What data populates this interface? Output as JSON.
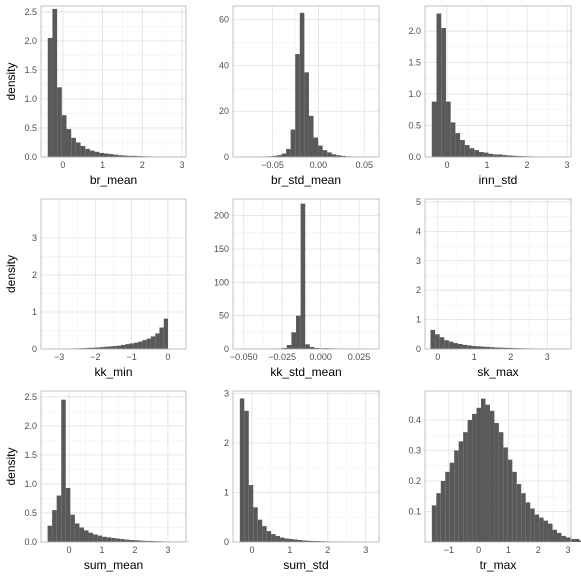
{
  "colors": {
    "bar": "#595959",
    "grid_major": "#e0e0e0",
    "grid_minor": "#f2f2f2",
    "panel_border": "#b3b3b3"
  },
  "chart_data": [
    {
      "type": "bar",
      "xlabel": "br_mean",
      "ylabel": "density",
      "xlim": [
        -0.55,
        3.1
      ],
      "ylim": [
        0,
        2.6
      ],
      "xticks": [
        0,
        1,
        2,
        3
      ],
      "xtick_labels": [
        "0",
        "1",
        "2",
        "3"
      ],
      "yticks": [
        0,
        0.5,
        1,
        1.5,
        2,
        2.5
      ],
      "ytick_labels": [
        "0.0",
        "0.5",
        "1.0",
        "1.5",
        "2.0",
        "2.5"
      ],
      "bin_start": -0.38,
      "bin_width": 0.118,
      "values": [
        2.05,
        2.55,
        1.2,
        0.72,
        0.48,
        0.33,
        0.25,
        0.19,
        0.14,
        0.11,
        0.09,
        0.07,
        0.06,
        0.05,
        0.04,
        0.03,
        0.025,
        0.02,
        0.02,
        0.015,
        0.012,
        0.01,
        0.008,
        0.006,
        0.005,
        0.004,
        0.003,
        0.002
      ]
    },
    {
      "type": "bar",
      "xlabel": "br_std_mean",
      "ylabel": "",
      "xlim": [
        -0.093,
        0.066
      ],
      "ylim": [
        0,
        66
      ],
      "xticks": [
        -0.05,
        0,
        0.05
      ],
      "xtick_labels": [
        "−0.05",
        "0.00",
        "0.05"
      ],
      "yticks": [
        0,
        20,
        40,
        60
      ],
      "ytick_labels": [
        "0",
        "20",
        "40",
        "60"
      ],
      "bin_start": -0.085,
      "bin_width": 0.00498,
      "values": [
        0.05,
        0.05,
        0.1,
        0.1,
        0.15,
        0.2,
        0.3,
        0.5,
        0.8,
        1.5,
        3.5,
        12,
        45,
        63,
        37,
        18,
        8.5,
        5,
        3,
        2,
        1.2,
        0.8,
        0.5,
        0.3,
        0.2,
        0.15,
        0.1,
        0.06,
        0.04,
        0.02
      ]
    },
    {
      "type": "bar",
      "xlabel": "inn_std",
      "ylabel": "",
      "xlim": [
        -0.55,
        3.1
      ],
      "ylim": [
        0,
        2.4
      ],
      "xticks": [
        0,
        1,
        2,
        3
      ],
      "xtick_labels": [
        "0",
        "1",
        "2",
        "3"
      ],
      "yticks": [
        0,
        0.5,
        1,
        1.5,
        2
      ],
      "ytick_labels": [
        "0.0",
        "0.5",
        "1.0",
        "1.5",
        "2.0"
      ],
      "bin_start": -0.38,
      "bin_width": 0.118,
      "values": [
        0.88,
        2.28,
        2.05,
        0.88,
        0.55,
        0.38,
        0.27,
        0.19,
        0.14,
        0.11,
        0.08,
        0.07,
        0.05,
        0.04,
        0.04,
        0.03,
        0.025,
        0.02,
        0.015,
        0.012,
        0.01,
        0.008,
        0.006,
        0.005,
        0.004,
        0.003,
        0.002,
        0.002
      ]
    },
    {
      "type": "bar",
      "xlabel": "kk_min",
      "ylabel": "density",
      "xlim": [
        -3.5,
        0.5
      ],
      "ylim": [
        0,
        4.05
      ],
      "xticks": [
        -3,
        -2,
        -1,
        0
      ],
      "xtick_labels": [
        "−3",
        "−2",
        "−1",
        "0"
      ],
      "yticks": [
        0,
        1,
        2,
        3
      ],
      "ytick_labels": [
        "0",
        "1",
        "2",
        "3"
      ],
      "bin_start": -3.3,
      "bin_width": 0.118,
      "values": [
        0.003,
        0.005,
        0.006,
        0.008,
        0.01,
        0.012,
        0.015,
        0.02,
        0.025,
        0.03,
        0.035,
        0.04,
        0.05,
        0.06,
        0.07,
        0.08,
        0.09,
        0.11,
        0.13,
        0.15,
        0.17,
        0.2,
        0.24,
        0.28,
        0.34,
        0.42,
        0.58,
        0.82
      ]
    },
    {
      "type": "bar",
      "xlabel": "kk_std_mean",
      "ylabel": "",
      "xlim": [
        -0.057,
        0.038
      ],
      "ylim": [
        0,
        225
      ],
      "xticks": [
        -0.05,
        -0.025,
        0,
        0.025
      ],
      "xtick_labels": [
        "−0.050",
        "−0.025",
        "0.000",
        "0.025"
      ],
      "yticks": [
        0,
        50,
        100,
        150,
        200
      ],
      "ytick_labels": [
        "0",
        "50",
        "100",
        "150",
        "200"
      ],
      "bin_start": -0.052,
      "bin_width": 0.003,
      "values": [
        0.05,
        0.05,
        0.1,
        0.1,
        0.15,
        0.2,
        0.3,
        0.5,
        0.8,
        1.5,
        6,
        25,
        50,
        218,
        7,
        3,
        1.5,
        1,
        1.2,
        1,
        0.8,
        0.6,
        0.5,
        0.4,
        0.3,
        0.2,
        0.1,
        0.05,
        0.03,
        0.02
      ]
    },
    {
      "type": "bar",
      "xlabel": "sk_max",
      "ylabel": "",
      "xlim": [
        -0.35,
        3.65
      ],
      "ylim": [
        0,
        5.1
      ],
      "xticks": [
        0,
        1,
        2,
        3
      ],
      "xtick_labels": [
        "0",
        "1",
        "2",
        "3"
      ],
      "yticks": [
        0,
        1,
        2,
        3,
        4,
        5
      ],
      "ytick_labels": [
        "0",
        "1",
        "2",
        "3",
        "4",
        "5"
      ],
      "bin_start": -0.2,
      "bin_width": 0.126,
      "values": [
        0.65,
        0.5,
        0.4,
        0.3,
        0.25,
        0.2,
        0.17,
        0.14,
        0.12,
        0.1,
        0.09,
        0.08,
        0.07,
        0.06,
        0.05,
        0.045,
        0.04,
        0.035,
        0.03,
        0.025,
        0.02,
        0.018,
        0.015,
        0.012,
        0.01,
        0.008,
        0.006,
        0.005,
        0.004,
        0.003
      ]
    },
    {
      "type": "bar",
      "xlabel": "sum_mean",
      "ylabel": "density",
      "xlim": [
        -0.85,
        3.55
      ],
      "ylim": [
        0,
        2.6
      ],
      "xticks": [
        0,
        1,
        2,
        3
      ],
      "xtick_labels": [
        "0",
        "1",
        "2",
        "3"
      ],
      "yticks": [
        0,
        0.5,
        1,
        1.5,
        2,
        2.5
      ],
      "ytick_labels": [
        "0.0",
        "0.5",
        "1.0",
        "1.5",
        "2.0",
        "2.5"
      ],
      "bin_start": -0.65,
      "bin_width": 0.138,
      "values": [
        0.28,
        0.55,
        0.8,
        2.45,
        0.93,
        0.47,
        0.32,
        0.25,
        0.2,
        0.16,
        0.13,
        0.11,
        0.09,
        0.08,
        0.07,
        0.06,
        0.05,
        0.04,
        0.035,
        0.03,
        0.025,
        0.02,
        0.018,
        0.015,
        0.012,
        0.01,
        0.008,
        0.006,
        0.005,
        0.004,
        0.003
      ]
    },
    {
      "type": "bar",
      "xlabel": "sum_std",
      "ylabel": "",
      "xlim": [
        -0.5,
        3.35
      ],
      "ylim": [
        0,
        3.05
      ],
      "xticks": [
        0,
        1,
        2,
        3
      ],
      "xtick_labels": [
        "0",
        "1",
        "2",
        "3"
      ],
      "yticks": [
        0,
        1,
        2,
        3
      ],
      "ytick_labels": [
        "0",
        "1",
        "2",
        "3"
      ],
      "bin_start": -0.32,
      "bin_width": 0.118,
      "values": [
        2.9,
        2.65,
        1.15,
        0.7,
        0.45,
        0.32,
        0.22,
        0.16,
        0.12,
        0.09,
        0.07,
        0.06,
        0.05,
        0.04,
        0.03,
        0.025,
        0.02,
        0.018,
        0.015,
        0.012,
        0.01,
        0.008,
        0.006,
        0.005,
        0.004,
        0.003,
        0.002,
        0.002,
        0.001,
        0.001
      ]
    },
    {
      "type": "bar",
      "xlabel": "tr_max",
      "ylabel": "",
      "xlim": [
        -1.8,
        3.1
      ],
      "ylim": [
        0,
        0.495
      ],
      "xticks": [
        -1,
        0,
        1,
        2,
        3
      ],
      "xtick_labels": [
        "−1",
        "0",
        "1",
        "2",
        "3"
      ],
      "yticks": [
        0.1,
        0.2,
        0.3,
        0.4
      ],
      "ytick_labels": [
        "0.1",
        "0.2",
        "0.3",
        "0.4"
      ],
      "bin_start": -1.57,
      "bin_width": 0.15,
      "values": [
        0.12,
        0.16,
        0.2,
        0.23,
        0.26,
        0.3,
        0.33,
        0.36,
        0.4,
        0.42,
        0.44,
        0.47,
        0.45,
        0.43,
        0.39,
        0.36,
        0.31,
        0.27,
        0.23,
        0.19,
        0.16,
        0.13,
        0.11,
        0.09,
        0.08,
        0.07,
        0.06,
        0.04,
        0.03,
        0.02,
        0.015,
        0.01,
        0.01,
        0.005
      ]
    }
  ]
}
